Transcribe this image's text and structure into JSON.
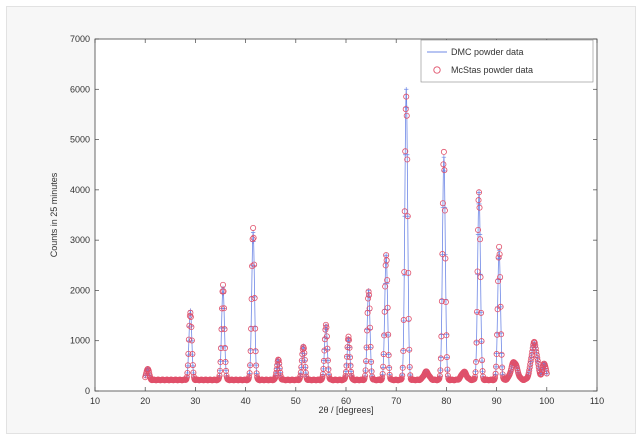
{
  "chart_data": {
    "type": "line",
    "title": "",
    "xlabel": "2θ / [degrees]",
    "ylabel": "Counts in 25 minutes",
    "xlim": [
      10,
      110
    ],
    "ylim": [
      0,
      7000
    ],
    "xticks": [
      10,
      20,
      30,
      40,
      50,
      60,
      70,
      80,
      90,
      100,
      110
    ],
    "yticks": [
      0,
      1000,
      2000,
      3000,
      4000,
      5000,
      6000,
      7000
    ],
    "grid": false,
    "legend_position": "top-right",
    "background": 220,
    "peaks": [
      {
        "x": 20.5,
        "y": 450,
        "w": 0.28
      },
      {
        "x": 29.0,
        "y": 1600,
        "w": 0.28
      },
      {
        "x": 35.5,
        "y": 2050,
        "w": 0.28
      },
      {
        "x": 41.5,
        "y": 3150,
        "w": 0.28
      },
      {
        "x": 46.5,
        "y": 620,
        "w": 0.28
      },
      {
        "x": 51.5,
        "y": 900,
        "w": 0.28
      },
      {
        "x": 56.0,
        "y": 1300,
        "w": 0.28
      },
      {
        "x": 60.5,
        "y": 1050,
        "w": 0.28
      },
      {
        "x": 64.5,
        "y": 2000,
        "w": 0.28
      },
      {
        "x": 68.0,
        "y": 2700,
        "w": 0.28
      },
      {
        "x": 72.0,
        "y": 6000,
        "w": 0.28
      },
      {
        "x": 76.0,
        "y": 380,
        "w": 0.5
      },
      {
        "x": 79.5,
        "y": 4650,
        "w": 0.28
      },
      {
        "x": 83.5,
        "y": 380,
        "w": 0.5
      },
      {
        "x": 86.5,
        "y": 3950,
        "w": 0.28
      },
      {
        "x": 90.5,
        "y": 2800,
        "w": 0.28
      },
      {
        "x": 93.5,
        "y": 580,
        "w": 0.6
      },
      {
        "x": 97.5,
        "y": 950,
        "w": 0.6
      },
      {
        "x": 99.5,
        "y": 550,
        "w": 0.35
      }
    ],
    "x_start": 20,
    "x_end": 100,
    "series": [
      {
        "name": "DMC powder data",
        "color": "#6f88e6",
        "style": "line"
      },
      {
        "name": "McStas powder data",
        "color": "#e0506a",
        "style": "circles"
      }
    ]
  }
}
